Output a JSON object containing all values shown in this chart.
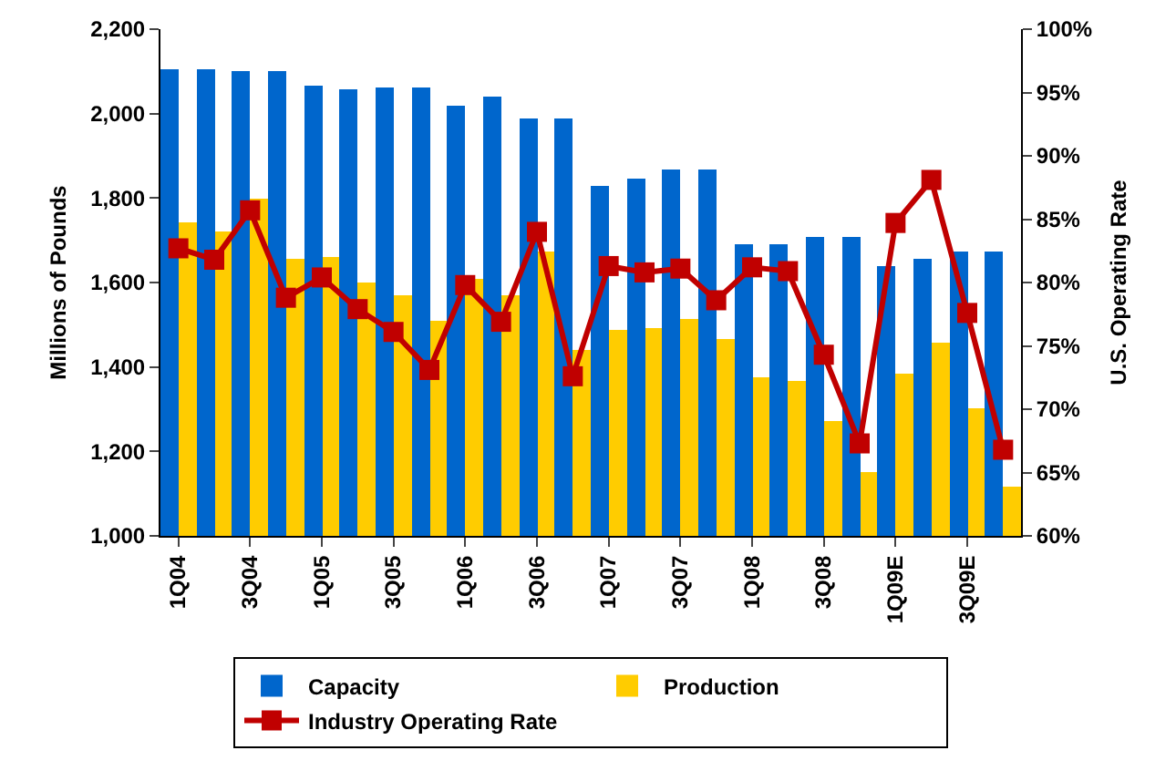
{
  "chart_data": {
    "type": "bar",
    "ylabel": "Millions of Pounds",
    "y2label": "U.S. Operating Rate",
    "categories": [
      "1Q04",
      null,
      "3Q04",
      null,
      "1Q05",
      null,
      "3Q05",
      null,
      "1Q06",
      null,
      "3Q06",
      null,
      "1Q07",
      null,
      "3Q07",
      null,
      "1Q08",
      null,
      "3Q08",
      null,
      "1Q09E",
      null,
      "3Q09E",
      null
    ],
    "series": [
      {
        "name": "Capacity",
        "color": "#0066cc",
        "values": [
          2105,
          2105,
          2100,
          2100,
          2068,
          2057,
          2064,
          2064,
          2020,
          2042,
          1987,
          1987,
          1829,
          1848,
          1866,
          1866,
          1690,
          1690,
          1708,
          1708,
          1639,
          1657,
          1675,
          1675
        ]
      },
      {
        "name": "Production",
        "color": "#ffcc00",
        "values": [
          1741,
          1719,
          1800,
          1657,
          1661,
          1602,
          1569,
          1510,
          1609,
          1569,
          1672,
          1440,
          1488,
          1492,
          1514,
          1466,
          1374,
          1367,
          1272,
          1150,
          1385,
          1459,
          1301,
          1117
        ]
      },
      {
        "name": "Industry Operating Rate",
        "type": "line",
        "axis": "y2",
        "color": "#c00000",
        "marker": "square",
        "values": [
          82.7,
          81.8,
          85.7,
          78.8,
          80.4,
          77.9,
          76.1,
          73.1,
          79.8,
          76.9,
          84.0,
          72.6,
          81.3,
          80.8,
          81.1,
          78.6,
          81.2,
          80.9,
          74.3,
          67.3,
          84.7,
          88.1,
          77.6,
          66.8
        ]
      }
    ],
    "ylim": [
      1000,
      2200
    ],
    "yticks": [
      {
        "value": 1000,
        "label": "1,000"
      },
      {
        "value": 1200,
        "label": "1,200"
      },
      {
        "value": 1400,
        "label": "1,400"
      },
      {
        "value": 1600,
        "label": "1,600"
      },
      {
        "value": 1800,
        "label": "1,800"
      },
      {
        "value": 2000,
        "label": "2,000"
      },
      {
        "value": 2200,
        "label": "2,200"
      }
    ],
    "y2lim": [
      60,
      100
    ],
    "y2ticks": [
      {
        "value": 60,
        "label": "60%"
      },
      {
        "value": 65,
        "label": "65%"
      },
      {
        "value": 70,
        "label": "70%"
      },
      {
        "value": 75,
        "label": "75%"
      },
      {
        "value": 80,
        "label": "80%"
      },
      {
        "value": 85,
        "label": "85%"
      },
      {
        "value": 90,
        "label": "90%"
      },
      {
        "value": 95,
        "label": "95%"
      },
      {
        "value": 100,
        "label": "100%"
      }
    ],
    "grid": false,
    "legend": "bottom"
  }
}
